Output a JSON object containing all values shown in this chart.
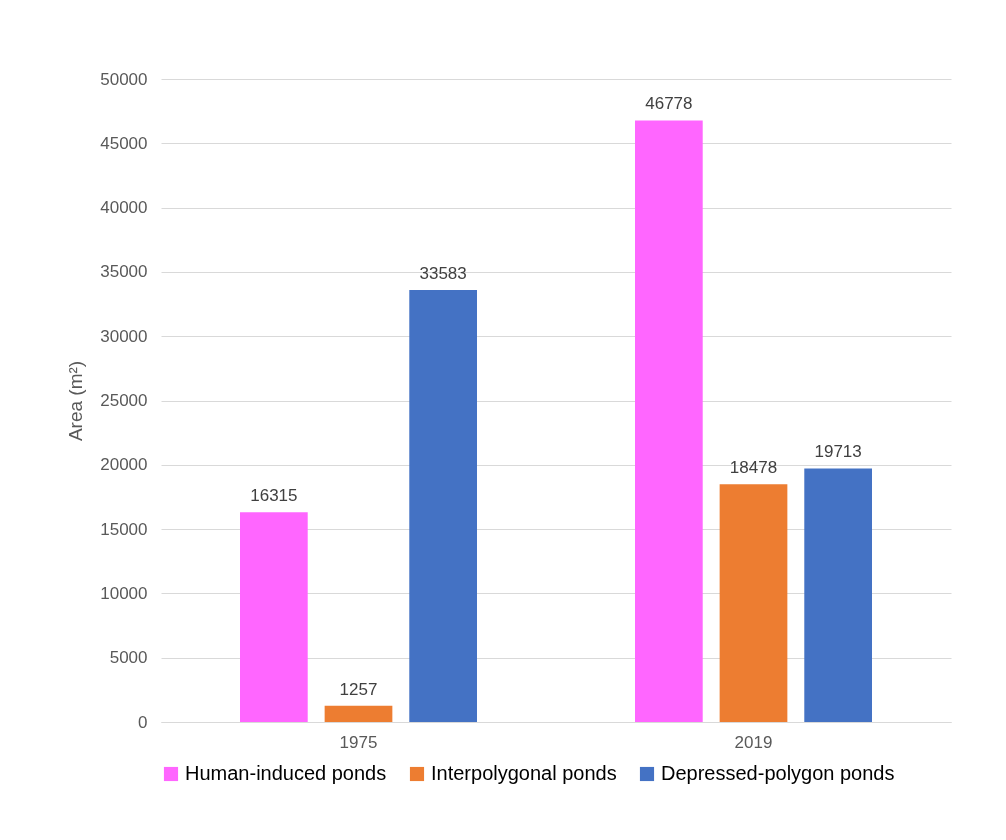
{
  "chart_data": {
    "type": "bar",
    "ylabel": "Area (m²)",
    "categories": [
      "1975",
      "2019"
    ],
    "series": [
      {
        "name": "Human-induced ponds",
        "color": "#ff66ff",
        "values": [
          16315,
          46778
        ]
      },
      {
        "name": "Interpolygonal ponds",
        "color": "#ed7d31",
        "values": [
          1257,
          18478
        ]
      },
      {
        "name": "Depressed-polygon ponds",
        "color": "#4472c4",
        "values": [
          33583,
          19713
        ]
      }
    ],
    "ylim": [
      0,
      50000
    ],
    "yticks": [
      0,
      5000,
      10000,
      15000,
      20000,
      25000,
      30000,
      35000,
      40000,
      45000,
      50000
    ],
    "grid": "y",
    "legend": "bottom",
    "data_labels": true
  }
}
